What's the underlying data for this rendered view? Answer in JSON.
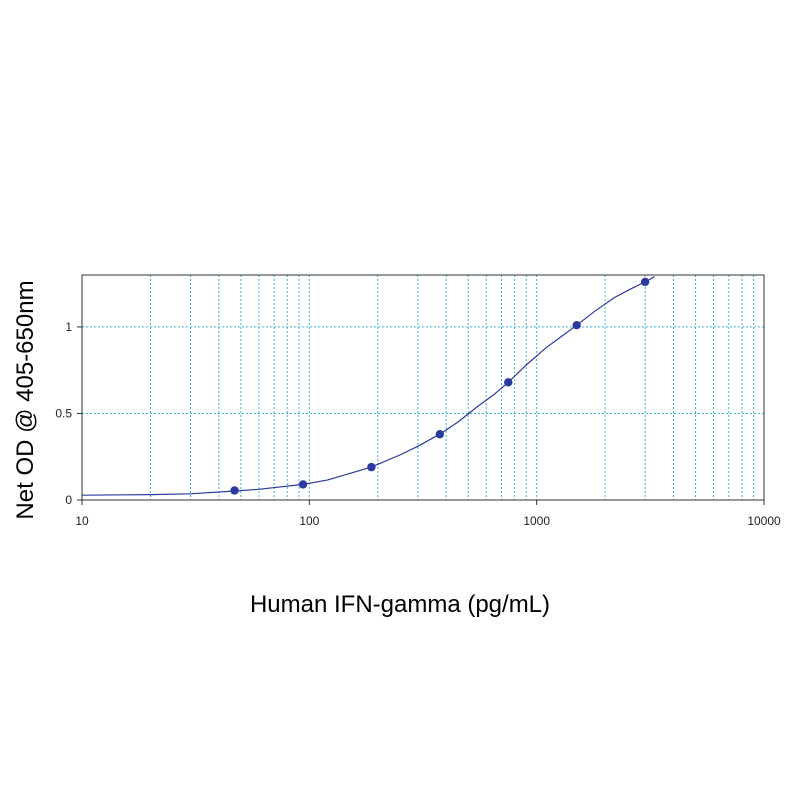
{
  "chart_data": {
    "type": "scatter",
    "title": "",
    "xlabel": "Human IFN-gamma (pg/mL)",
    "ylabel": "Net OD @ 405-650nm",
    "x_scale": "log",
    "xlim": [
      10,
      10000
    ],
    "ylim": [
      0,
      1.3
    ],
    "x_ticks": [
      10,
      100,
      1000,
      10000
    ],
    "x_tick_labels": [
      "10",
      "100",
      "1000",
      "10000"
    ],
    "y_ticks": [
      0,
      0.5,
      1
    ],
    "y_tick_labels": [
      "0",
      "0.5",
      "1"
    ],
    "grid": true,
    "legend": "none",
    "series": [
      {
        "x": [
          46.9,
          93.8,
          187.5,
          375,
          750,
          1500,
          3000
        ],
        "y": [
          0.055,
          0.09,
          0.19,
          0.38,
          0.68,
          1.01,
          1.26
        ]
      }
    ],
    "fit_curve": {
      "x": [
        10,
        20,
        30,
        46.9,
        60,
        93.8,
        120,
        187.5,
        250,
        300,
        375,
        450,
        550,
        650,
        750,
        900,
        1100,
        1300,
        1500,
        1800,
        2200,
        2600,
        3000,
        3300
      ],
      "y": [
        0.028,
        0.031,
        0.036,
        0.052,
        0.062,
        0.09,
        0.115,
        0.19,
        0.26,
        0.31,
        0.38,
        0.45,
        0.54,
        0.61,
        0.68,
        0.78,
        0.88,
        0.95,
        1.01,
        1.09,
        1.17,
        1.22,
        1.26,
        1.29
      ]
    },
    "colors": {
      "data": "#2b3a9e",
      "grid": "#3ab3d6",
      "axis": "#333333"
    }
  }
}
